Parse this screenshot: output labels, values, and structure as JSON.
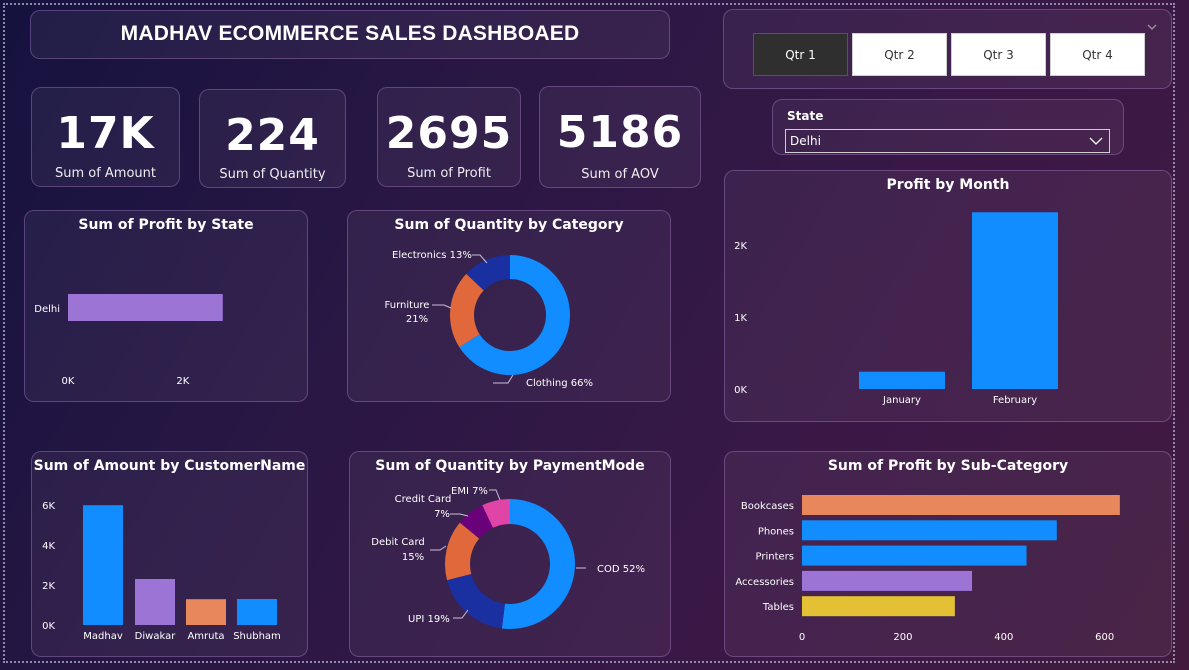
{
  "dashboard": {
    "title": "MADHAV ECOMMERCE SALES DASHBOAED"
  },
  "kpis": [
    {
      "value": "17K",
      "label": "Sum of Amount"
    },
    {
      "value": "224",
      "label": "Sum of Quantity"
    },
    {
      "value": "2695",
      "label": "Sum of Profit"
    },
    {
      "value": "5186",
      "label": "Sum of AOV"
    }
  ],
  "quarter_slicer": {
    "options": [
      "Qtr 1",
      "Qtr 2",
      "Qtr 3",
      "Qtr 4"
    ],
    "selected": "Qtr 1"
  },
  "state_slicer": {
    "label": "State",
    "value": "Delhi"
  },
  "colors": {
    "blue": "#118dff",
    "purple": "#9b74d6",
    "orange": "#e8875b",
    "navy": "#1a2fa0",
    "orange_dark": "#e0683a",
    "dark_purple": "#6b007b",
    "pink": "#e044a7",
    "yellow": "#e3c034"
  },
  "chart_data": [
    {
      "id": "profit_by_state",
      "type": "bar",
      "orientation": "horizontal",
      "title": "Sum of Profit by State",
      "categories": [
        "Delhi"
      ],
      "values": [
        2695
      ],
      "x_ticks": [
        "0K",
        "2K"
      ],
      "xlim": [
        0,
        3500
      ]
    },
    {
      "id": "quantity_by_category",
      "type": "pie",
      "donut": true,
      "title": "Sum of Quantity by Category",
      "slices": [
        {
          "label": "Clothing",
          "percent": 66,
          "color": "#118dff",
          "display": "Clothing 66%"
        },
        {
          "label": "Furniture",
          "percent": 21,
          "color": "#e0683a",
          "display": "Furniture",
          "display2": "21%"
        },
        {
          "label": "Electronics",
          "percent": 13,
          "color": "#1a2fa0",
          "display": "Electronics 13%"
        }
      ]
    },
    {
      "id": "profit_by_month",
      "type": "bar",
      "title": "Profit by Month",
      "categories": [
        "January",
        "February"
      ],
      "values": [
        240,
        2455
      ],
      "y_ticks": [
        "0K",
        "1K",
        "2K"
      ],
      "ylim": [
        0,
        2500
      ]
    },
    {
      "id": "amount_by_customer",
      "type": "bar",
      "title": "Sum of Amount by CustomerName",
      "categories": [
        "Madhav",
        "Diwakar",
        "Amruta",
        "Shubham"
      ],
      "values": [
        5990,
        2300,
        1290,
        1300
      ],
      "colors": [
        "#118dff",
        "#9b74d6",
        "#e8875b",
        "#118dff"
      ],
      "y_ticks": [
        "0K",
        "2K",
        "4K",
        "6K"
      ],
      "ylim": [
        0,
        6000
      ]
    },
    {
      "id": "quantity_by_paymentmode",
      "type": "pie",
      "donut": true,
      "title": "Sum of Quantity by PaymentMode",
      "slices": [
        {
          "label": "COD",
          "percent": 52,
          "color": "#118dff",
          "display": "COD 52%"
        },
        {
          "label": "UPI",
          "percent": 19,
          "color": "#1a2fa0",
          "display": "UPI 19%"
        },
        {
          "label": "Debit Card",
          "percent": 15,
          "color": "#e0683a",
          "display": "Debit Card",
          "display2": "15%"
        },
        {
          "label": "Credit Card",
          "percent": 7,
          "color": "#6b007b",
          "display": "Credit Card",
          "display2": "7%"
        },
        {
          "label": "EMI",
          "percent": 7,
          "color": "#e044a7",
          "display": "EMI 7%"
        }
      ]
    },
    {
      "id": "profit_by_subcategory",
      "type": "bar",
      "orientation": "horizontal",
      "title": "Sum of Profit by Sub-Category",
      "categories": [
        "Bookcases",
        "Phones",
        "Printers",
        "Accessories",
        "Tables"
      ],
      "values": [
        630,
        505,
        445,
        337,
        303
      ],
      "colors": [
        "#e8875b",
        "#118dff",
        "#118dff",
        "#9b74d6",
        "#e3c034"
      ],
      "x_ticks": [
        "0",
        "200",
        "400",
        "600"
      ],
      "xlim": [
        0,
        660
      ]
    }
  ]
}
